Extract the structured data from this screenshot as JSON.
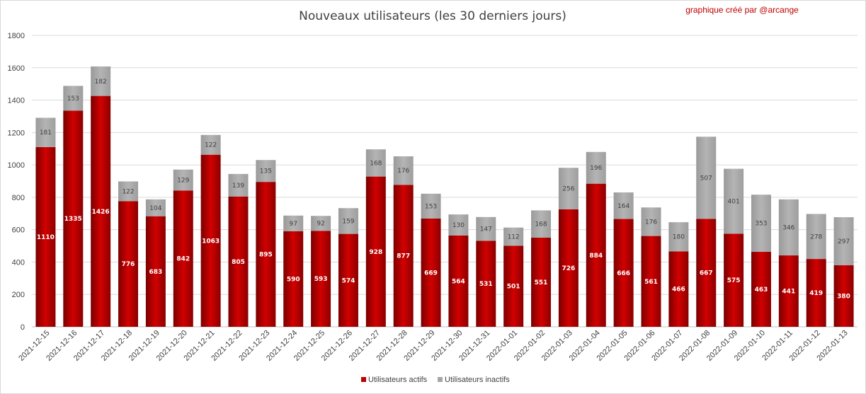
{
  "chart_data": {
    "type": "bar",
    "stacked": true,
    "title": "Nouveaux utilisateurs  (les 30 derniers  jours)",
    "credit": "graphique créé par @arcange",
    "categories": [
      "2021-12-15",
      "2021-12-16",
      "2021-12-17",
      "2021-12-18",
      "2021-12-19",
      "2021-12-20",
      "2021-12-21",
      "2021-12-22",
      "2021-12-23",
      "2021-12-24",
      "2021-12-25",
      "2021-12-26",
      "2021-12-27",
      "2021-12-28",
      "2021-12-29",
      "2021-12-30",
      "2021-12-31",
      "2022-01-01",
      "2022-01-02",
      "2022-01-03",
      "2022-01-04",
      "2022-01-05",
      "2022-01-06",
      "2022-01-07",
      "2022-01-08",
      "2022-01-09",
      "2022-01-10",
      "2022-01-11",
      "2022-01-12",
      "2022-01-13"
    ],
    "series": [
      {
        "name": "Utilisateurs actifs",
        "color": "#c00000",
        "values": [
          1110,
          1335,
          1426,
          776,
          683,
          842,
          1063,
          805,
          895,
          590,
          593,
          574,
          928,
          877,
          669,
          564,
          531,
          501,
          551,
          726,
          884,
          666,
          561,
          466,
          667,
          575,
          463,
          441,
          419,
          380
        ]
      },
      {
        "name": "Utilisateurs inactifs",
        "color": "#a6a6a6",
        "values": [
          181,
          153,
          182,
          122,
          104,
          129,
          122,
          139,
          135,
          97,
          92,
          159,
          168,
          176,
          153,
          130,
          147,
          112,
          168,
          256,
          196,
          164,
          176,
          180,
          507,
          401,
          353,
          346,
          278,
          297
        ]
      }
    ],
    "yticks": [
      "0",
      "200",
      "400",
      "600",
      "800",
      "1000",
      "1200",
      "1400",
      "1600",
      "1800"
    ],
    "ylim": [
      0,
      1800
    ],
    "grid": true,
    "legend": "bottom"
  }
}
